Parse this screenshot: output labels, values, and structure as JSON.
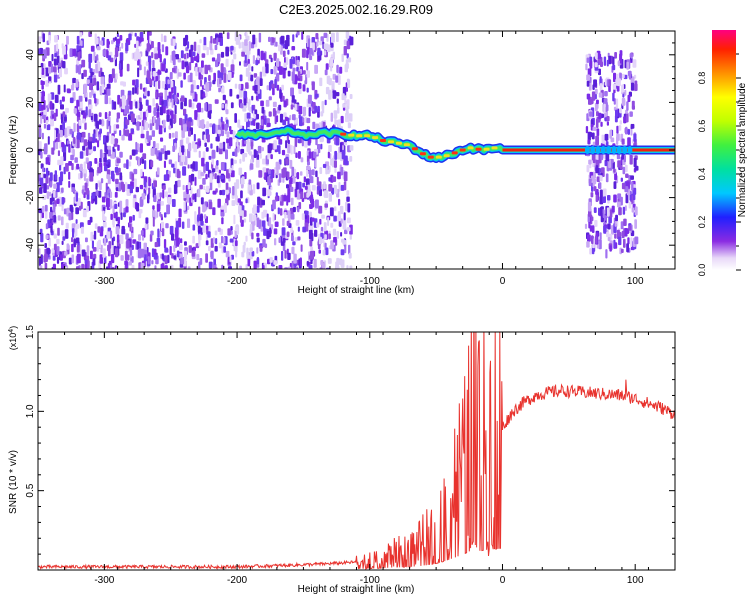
{
  "figure": {
    "title": "C2E3.2025.002.16.29.R09"
  },
  "chart_data": [
    {
      "type": "heatmap",
      "xlabel": "Height of straight line (km)",
      "ylabel": "Frequency (Hz)",
      "xlim": [
        -350,
        130
      ],
      "ylim": [
        -50,
        50
      ],
      "xticks": [
        -300,
        -200,
        -100,
        0,
        100
      ],
      "yticks": [
        -40,
        -20,
        0,
        20,
        40
      ],
      "colorbar": {
        "label": "Normalized spectral amplitude",
        "range": [
          0,
          1
        ],
        "ticks": [
          0.0,
          0.2,
          0.4,
          0.6,
          0.8
        ]
      },
      "ridge": [
        {
          "x": -200,
          "y": 7
        },
        {
          "x": -185,
          "y": 6
        },
        {
          "x": -170,
          "y": 7
        },
        {
          "x": -160,
          "y": 8
        },
        {
          "x": -150,
          "y": 6
        },
        {
          "x": -140,
          "y": 7
        },
        {
          "x": -125,
          "y": 7
        },
        {
          "x": -110,
          "y": 6
        },
        {
          "x": -100,
          "y": 6
        },
        {
          "x": -90,
          "y": 4
        },
        {
          "x": -80,
          "y": 3
        },
        {
          "x": -70,
          "y": 2
        },
        {
          "x": -62,
          "y": -1
        },
        {
          "x": -55,
          "y": -3
        },
        {
          "x": -45,
          "y": -3
        },
        {
          "x": -35,
          "y": -1
        },
        {
          "x": -25,
          "y": 1
        },
        {
          "x": -15,
          "y": 0
        },
        {
          "x": -5,
          "y": 1
        },
        {
          "x": 0,
          "y": 0
        },
        {
          "x": 130,
          "y": 0
        }
      ],
      "noise_regions": [
        {
          "x": [
            -350,
            -115
          ],
          "y": [
            -50,
            50
          ],
          "level": 0.25
        },
        {
          "x": [
            62,
            100
          ],
          "y": [
            -42,
            42
          ],
          "level": 0.2
        }
      ]
    },
    {
      "type": "line",
      "xlabel": "Height of straight line (km)",
      "ylabel": "SNR (10 * v/v)",
      "y_multiplier_label": "(x10",
      "y_multiplier_exp": "4",
      "y_multiplier_close": ")",
      "xlim": [
        -350,
        130
      ],
      "ylim": [
        0,
        1.5
      ],
      "xticks": [
        -300,
        -200,
        -100,
        0,
        100
      ],
      "yticks": [
        0.5,
        1.0,
        1.5
      ],
      "ytick_labels": [
        "0.5",
        "1.0",
        "1.5"
      ],
      "color": "#e8332e",
      "series": [
        {
          "x": [
            -350,
            -300,
            -250,
            -200,
            -160,
            -130,
            -110,
            -95,
            -85,
            -75,
            -65,
            -55,
            -48,
            -42,
            -36,
            -30,
            -25,
            -22,
            -18,
            -12,
            -6,
            0,
            8,
            15,
            25,
            35,
            45,
            60,
            75,
            90,
            100,
            110,
            120,
            130
          ],
          "values": [
            0.02,
            0.02,
            0.02,
            0.02,
            0.03,
            0.04,
            0.05,
            0.07,
            0.1,
            0.12,
            0.15,
            0.22,
            0.3,
            0.4,
            0.52,
            0.65,
            0.78,
            1.2,
            0.8,
            0.85,
            0.88,
            0.9,
            1.0,
            1.05,
            1.1,
            1.12,
            1.13,
            1.12,
            1.11,
            1.1,
            1.08,
            1.05,
            1.02,
            0.98
          ]
        }
      ]
    }
  ]
}
